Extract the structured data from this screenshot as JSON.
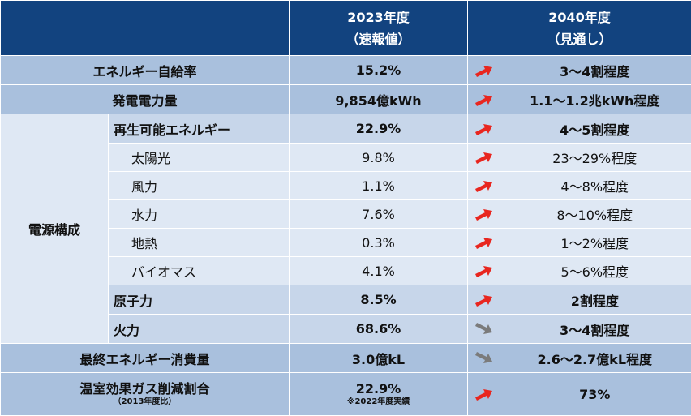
{
  "header": {
    "col_2023_line1": "2023年度",
    "col_2023_line2": "（速報値）",
    "col_2040_line1": "2040年度",
    "col_2040_line2": "（見通し）"
  },
  "rows": [
    {
      "label": "エネルギー自給率",
      "v2023": "15.2%",
      "v2040": "3〜4割程度",
      "trend": "up"
    },
    {
      "label": "発電電力量",
      "v2023": "9,854億kWh",
      "v2040": "1.1〜1.2兆kWh程度",
      "trend": "up"
    },
    {
      "group": "電源構成"
    },
    {
      "label": "再生可能エネルギー",
      "v2023": "22.9%",
      "v2040": "4〜5割程度",
      "trend": "up"
    },
    {
      "label": "太陽光",
      "v2023": "9.8%",
      "v2040": "23〜29%程度",
      "trend": "up"
    },
    {
      "label": "風力",
      "v2023": "1.1%",
      "v2040": "4〜8%程度",
      "trend": "up"
    },
    {
      "label": "水力",
      "v2023": "7.6%",
      "v2040": "8〜10%程度",
      "trend": "up"
    },
    {
      "label": "地熱",
      "v2023": "0.3%",
      "v2040": "1〜2%程度",
      "trend": "up"
    },
    {
      "label": "バイオマス",
      "v2023": "4.1%",
      "v2040": "5〜6%程度",
      "trend": "up"
    },
    {
      "label": "原子力",
      "v2023": "8.5%",
      "v2040": "2割程度",
      "trend": "up"
    },
    {
      "label": "火力",
      "v2023": "68.6%",
      "v2040": "3〜4割程度",
      "trend": "down"
    },
    {
      "label": "最終エネルギー消費量",
      "v2023": "3.0億kL",
      "v2040": "2.6〜2.7億kL程度",
      "trend": "down"
    },
    {
      "label": "温室効果ガス削減割合",
      "label_note": "（2013年度比）",
      "v2023": "22.9%",
      "v2023_note": "※2022年度実績",
      "v2040": "73%",
      "trend": "up"
    }
  ],
  "colors": {
    "header": "#12437f",
    "row_dark": "#a9c0dd",
    "row_mid": "#c7d6ea",
    "row_light": "#dfe8f4",
    "arrow_up": "#e8261f",
    "arrow_down": "#7b7b7b"
  },
  "icons": {
    "up": "arrow-up-right-icon",
    "down": "arrow-down-right-icon"
  }
}
